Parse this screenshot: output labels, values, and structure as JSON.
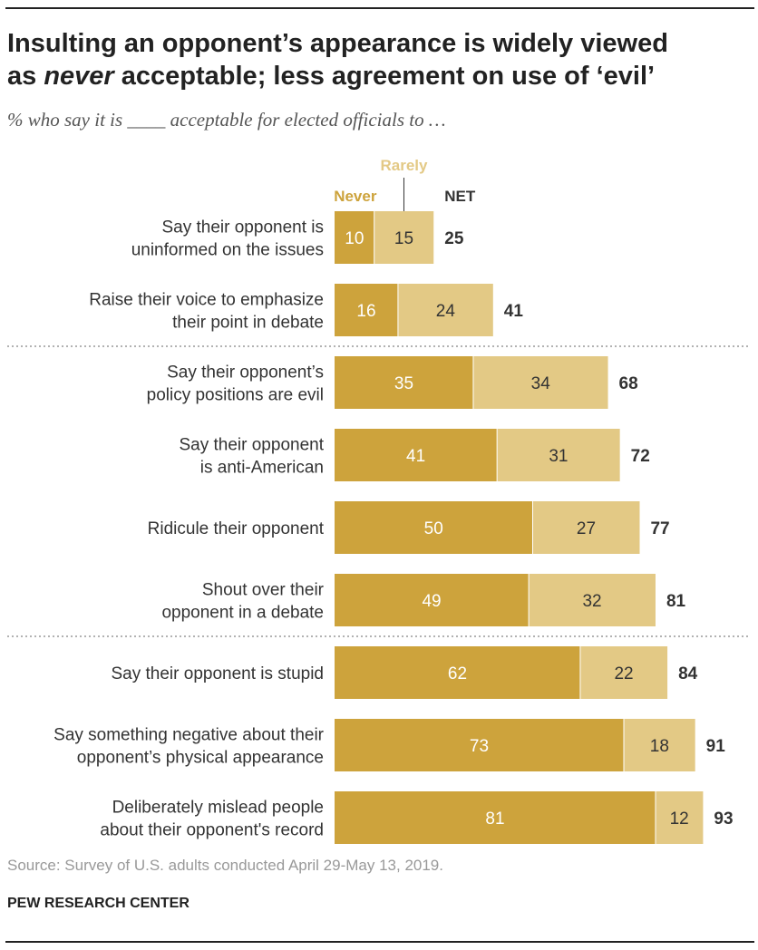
{
  "title": {
    "line1": "Insulting an opponent’s appearance is widely viewed",
    "line2_pre": "as ",
    "line2_em": "never",
    "line2_post": " acceptable; less agreement on use of ‘evil’"
  },
  "subtitle": "% who say it is ____ acceptable for elected officials to …",
  "chart_data": {
    "type": "bar",
    "orientation": "horizontal",
    "stacked": true,
    "legend": {
      "never": "Never",
      "rarely": "Rarely",
      "net": "NET"
    },
    "categories": [
      [
        "Say their opponent is",
        "uninformed on the issues"
      ],
      [
        "Raise their voice to emphasize",
        "their point in debate"
      ],
      [
        "Say their opponent’s",
        "policy positions are evil"
      ],
      [
        "Say their opponent",
        "is anti-American"
      ],
      [
        "Ridicule their opponent"
      ],
      [
        "Shout over their",
        "opponent in a debate"
      ],
      [
        "Say their opponent is stupid"
      ],
      [
        "Say something negative about their",
        "opponent’s physical appearance"
      ],
      [
        "Deliberately mislead people",
        "about their opponent's record"
      ]
    ],
    "series": [
      {
        "name": "Never",
        "values": [
          10,
          16,
          35,
          41,
          50,
          49,
          62,
          73,
          81
        ]
      },
      {
        "name": "Rarely",
        "values": [
          15,
          24,
          34,
          31,
          27,
          32,
          22,
          18,
          12
        ]
      }
    ],
    "net": [
      25,
      41,
      68,
      72,
      77,
      81,
      84,
      91,
      93
    ],
    "colors": {
      "never": "#CDA33C",
      "rarely": "#E3C985",
      "net_text": "#333333",
      "label_text": "#333333",
      "separator": "#999999"
    },
    "group_separators_after": [
      1,
      5
    ],
    "xlim": [
      0,
      100
    ]
  },
  "source": "Source: Survey of U.S. adults conducted April 29-May 13, 2019.",
  "organization": "PEW RESEARCH CENTER"
}
